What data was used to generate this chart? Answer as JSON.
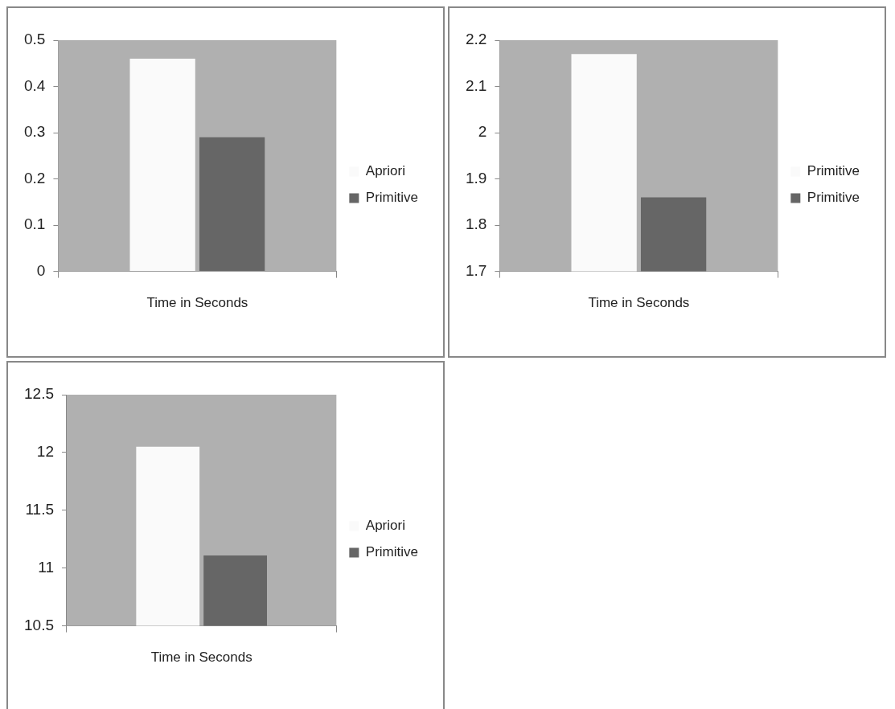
{
  "chart_data": [
    {
      "type": "bar",
      "categories": [
        "Time in Seconds"
      ],
      "series": [
        {
          "name": "Apriori",
          "color": "#fafafa",
          "values": [
            0.46
          ]
        },
        {
          "name": "Primitive",
          "color": "#666666",
          "values": [
            0.29
          ]
        }
      ],
      "ylim": [
        0,
        0.5
      ],
      "yticks": [
        0,
        0.1,
        0.2,
        0.3,
        0.4,
        0.5
      ],
      "grid": false,
      "legend": "right"
    },
    {
      "type": "bar",
      "categories": [
        "Time in Seconds"
      ],
      "series": [
        {
          "name": "Primitive",
          "color": "#fafafa",
          "values": [
            2.17
          ]
        },
        {
          "name": "Primitive",
          "color": "#666666",
          "values": [
            1.86
          ]
        }
      ],
      "ylim": [
        1.7,
        2.2
      ],
      "yticks": [
        1.7,
        1.8,
        1.9,
        2,
        2.1,
        2.2
      ],
      "grid": false,
      "legend": "right"
    },
    {
      "type": "bar",
      "categories": [
        "Time in Seconds"
      ],
      "series": [
        {
          "name": "Apriori",
          "color": "#fafafa",
          "values": [
            12.05
          ]
        },
        {
          "name": "Primitive",
          "color": "#666666",
          "values": [
            11.11
          ]
        }
      ],
      "ylim": [
        10.5,
        12.5
      ],
      "yticks": [
        10.5,
        11,
        11.5,
        12,
        12.5
      ],
      "grid": false,
      "legend": "right"
    }
  ]
}
